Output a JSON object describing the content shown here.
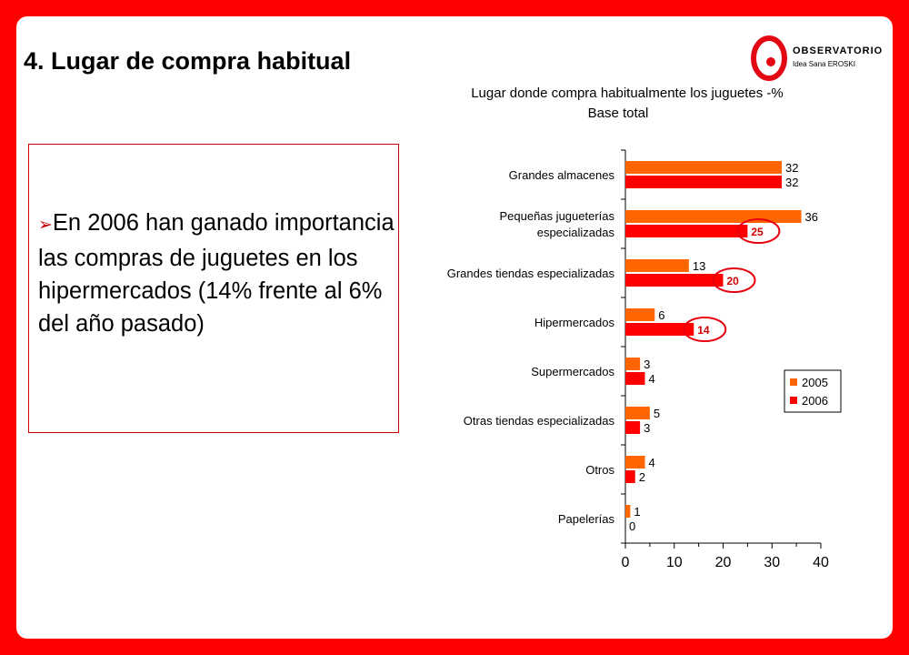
{
  "slide": {
    "title": "4. Lugar de compra habitual",
    "bullet_text": "En 2006 han ganado importancia las compras de juguetes en los hipermercados (14% frente al 6% del año pasado)"
  },
  "logo": {
    "name": "OBSERVATORIO",
    "sub": "Idea Sana EROSKI"
  },
  "colors": {
    "background": "#ff0000",
    "series_2005": "#ff6600",
    "series_2006": "#ff0000",
    "highlight": "#e8000e"
  },
  "chart_data": {
    "type": "bar",
    "orientation": "horizontal",
    "title": "Lugar donde compra habitualmente los juguetes -%",
    "subtitle": "Base total",
    "categories": [
      "Grandes almacenes",
      "Pequeñas jugueterías especializadas",
      "Grandes tiendas especializadas",
      "Hipermercados",
      "Supermercados",
      "Otras tiendas especializadas",
      "Otros",
      "Papelerías"
    ],
    "series": [
      {
        "name": "2005",
        "values": [
          32,
          36,
          13,
          6,
          3,
          5,
          4,
          1
        ]
      },
      {
        "name": "2006",
        "values": [
          32,
          25,
          20,
          14,
          4,
          3,
          2,
          0
        ]
      }
    ],
    "highlighted_2006": [
      1,
      2,
      3
    ],
    "xlim": [
      0,
      40
    ],
    "xticks": [
      0,
      10,
      20,
      30,
      40
    ],
    "legend_position": "right",
    "grid": false
  }
}
